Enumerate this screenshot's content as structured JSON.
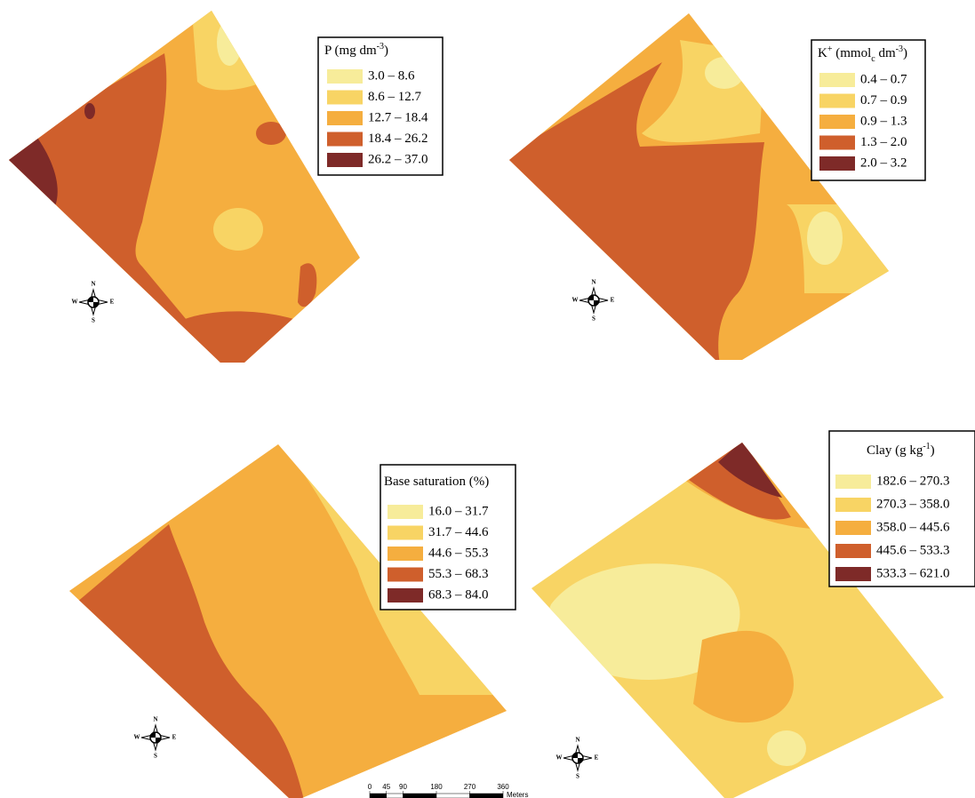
{
  "maps": [
    {
      "legend": {
        "title_parts": [
          {
            "text": "P (mg dm"
          },
          {
            "text": "-3",
            "sup": true
          },
          {
            "text": ")"
          }
        ],
        "classes": [
          {
            "label": "3.0 – 8.6",
            "color": "#f7ec9a"
          },
          {
            "label": "8.6 – 12.7",
            "color": "#f8d464"
          },
          {
            "label": "12.7 – 18.4",
            "color": "#f5ae3f"
          },
          {
            "label": "18.4 – 26.2",
            "color": "#cf5f2c"
          },
          {
            "label": "26.2 – 37.0",
            "color": "#7e2a28"
          }
        ]
      }
    },
    {
      "legend": {
        "title_parts": [
          {
            "text": "K"
          },
          {
            "text": "+",
            "sup": true
          },
          {
            "text": " (mmol"
          },
          {
            "text": "c",
            "sub": true
          },
          {
            "text": " dm"
          },
          {
            "text": "-3",
            "sup": true
          },
          {
            "text": ")"
          }
        ],
        "classes": [
          {
            "label": "0.4 – 0.7",
            "color": "#f7ec9a"
          },
          {
            "label": "0.7 – 0.9",
            "color": "#f8d464"
          },
          {
            "label": "0.9 – 1.3",
            "color": "#f5ae3f"
          },
          {
            "label": "1.3 – 2.0",
            "color": "#cf5f2c"
          },
          {
            "label": "2.0 – 3.2",
            "color": "#7e2a28"
          }
        ]
      }
    },
    {
      "legend": {
        "title_parts": [
          {
            "text": "Base saturation (%)"
          }
        ],
        "classes": [
          {
            "label": "16.0 – 31.7",
            "color": "#f7ec9a"
          },
          {
            "label": "31.7 – 44.6",
            "color": "#f8d464"
          },
          {
            "label": "44.6 – 55.3",
            "color": "#f5ae3f"
          },
          {
            "label": "55.3 – 68.3",
            "color": "#cf5f2c"
          },
          {
            "label": "68.3 – 84.0",
            "color": "#7e2a28"
          }
        ]
      }
    },
    {
      "legend": {
        "title_parts": [
          {
            "text": "Clay (g kg"
          },
          {
            "text": "-1",
            "sup": true
          },
          {
            "text": ")"
          }
        ],
        "classes": [
          {
            "label": "182.6 – 270.3",
            "color": "#f7ec9a"
          },
          {
            "label": "270.3 – 358.0",
            "color": "#f8d464"
          },
          {
            "label": "358.0 – 445.6",
            "color": "#f5ae3f"
          },
          {
            "label": "445.6 – 533.3",
            "color": "#cf5f2c"
          },
          {
            "label": "533.3 – 621.0",
            "color": "#7e2a28"
          }
        ]
      }
    }
  ],
  "compass": {
    "n": "N",
    "s": "S",
    "e": "E",
    "w": "W"
  },
  "scale_bar": {
    "ticks": [
      0,
      45,
      90,
      180,
      270,
      360
    ],
    "unit": "Meters"
  }
}
